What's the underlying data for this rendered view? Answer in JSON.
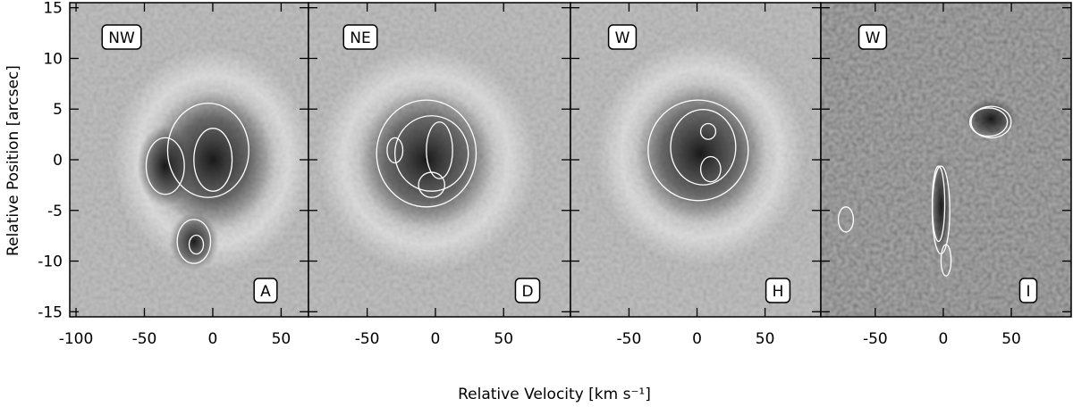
{
  "figure": {
    "xlabel": "Relative Velocity [km s⁻¹]",
    "ylabel": "Relative Position [arcsec]"
  },
  "chart_data": [
    {
      "type": "image",
      "label": "NW",
      "panel": "A",
      "xlim": [
        -104.6,
        70
      ],
      "xticks": [
        -100,
        -50,
        0,
        50
      ],
      "ylim": [
        -15.5,
        15.5
      ],
      "yticks": [
        -15,
        -10,
        -5,
        0,
        5,
        10,
        15
      ],
      "show_yticklabels": true
    },
    {
      "type": "image",
      "label": "NE",
      "panel": "D",
      "xlim": [
        -93,
        99
      ],
      "xticks": [
        -50,
        0,
        50
      ],
      "ylim": [
        -15.5,
        15.5
      ],
      "yticks": [
        -15,
        -10,
        -5,
        0,
        5,
        10,
        15
      ],
      "show_yticklabels": false
    },
    {
      "type": "image",
      "label": "W",
      "panel": "H",
      "xlim": [
        -93,
        91
      ],
      "xticks": [
        -50,
        0,
        50
      ],
      "ylim": [
        -15.5,
        15.5
      ],
      "yticks": [
        -15,
        -10,
        -5,
        0,
        5,
        10,
        15
      ],
      "show_yticklabels": false
    },
    {
      "type": "image",
      "label": "W",
      "panel": "I",
      "xlim": [
        -90,
        94
      ],
      "xticks": [
        -50,
        0,
        50
      ],
      "ylim": [
        -15.5,
        15.5
      ],
      "yticks": [
        -15,
        -10,
        -5,
        0,
        5,
        10,
        15
      ],
      "show_yticklabels": false
    }
  ]
}
